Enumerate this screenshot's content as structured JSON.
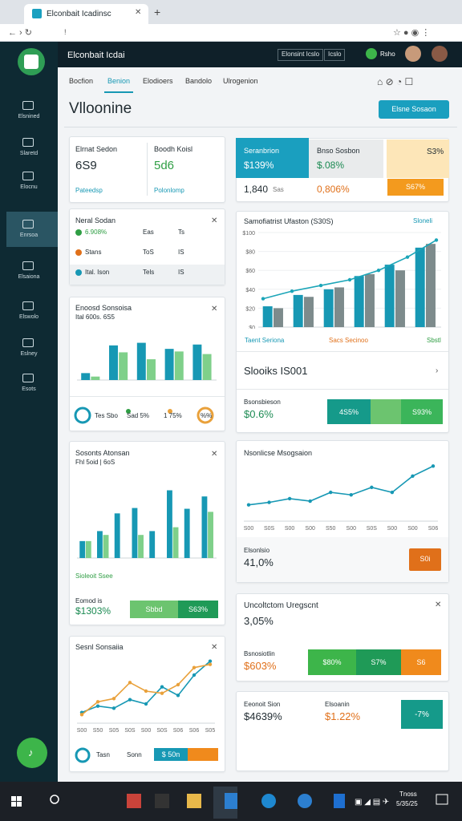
{
  "browser": {
    "tab_title": "Elconbait Icadinsc",
    "url": "!"
  },
  "header": {
    "brand": "Elconbait Icdai",
    "search": "Elonsint Icslo",
    "button": "Icslo",
    "user": "Rsho"
  },
  "sidebar": [
    "Elsnined",
    "Slaretd",
    "Elocnu",
    "Enrsoa",
    "Elsaiona",
    "Elswolo",
    "Eslney",
    "Esots"
  ],
  "tabs": [
    "Bocfion",
    "Benion",
    "Elodioers",
    "Bandolo",
    "Ulrogenion"
  ],
  "page_title": "Vlloonine",
  "action_button": "Elsne Sosaon",
  "cards": {
    "stats": [
      {
        "label": "Elrnat Sedon",
        "value": "6S9",
        "link": "Pateedsp"
      },
      {
        "label": "Boodh Koisl",
        "value": "5d6",
        "link": "Polonlomp"
      }
    ],
    "neral": {
      "title": "Neral Sodan",
      "rows": [
        [
          "6.908%",
          "Eas",
          "Ts"
        ],
        [
          "Stans",
          "ToS",
          "IS"
        ],
        [
          "Ital. Ison",
          "Tels",
          "IS"
        ]
      ]
    },
    "spend": {
      "title": "Enoosd Sonsoisa",
      "subtitle": "Ital 600s. 6S5",
      "donuts": [
        "Tes Sbo",
        "Sad 5%",
        "1 75%",
        "%%"
      ]
    },
    "activity": {
      "title": "Sosonts Atonsan",
      "subtitle": "Fhl 5oid | 6oS",
      "legend": "Sioleoit Ssee",
      "metric_label": "Eomod is",
      "metric": "$1303%",
      "bar": [
        "Sbbd",
        "S63%"
      ]
    },
    "sessions": {
      "title": "Sesnl Sonsaiia",
      "footer": [
        "Tasn",
        "Sonn",
        "$ 50n"
      ]
    },
    "tiles": [
      {
        "label": "Seranbrion",
        "value": "$139%"
      },
      {
        "label": "Bnso Sosbon",
        "value": "$.08%"
      },
      {
        "label": "",
        "value": "S3%"
      }
    ],
    "tiles_row": [
      "1,840",
      "Sas",
      "0,806%",
      "S67%"
    ],
    "revenue": {
      "title": "Samofiatrist Ufaston (S30S)",
      "link": "Sloneli",
      "legend": [
        "Taent Seriona",
        "Sacs Secinoo",
        "Sbstl"
      ],
      "section": "Slooiks IS001",
      "metric_label": "Bsonsbieson",
      "metric": "$0.6%",
      "bar": [
        "4S5%",
        "S93%"
      ]
    },
    "trend": {
      "title": "Nsonlicse Msogsaion",
      "metric_label": "Elsonlsio",
      "metric": "41,0%",
      "button": "S0i"
    },
    "urgent": {
      "title": "Uncoltctom Uregscnt",
      "value": "3,05%",
      "metric_label": "Bsnosiotlin",
      "metric": "$603%",
      "bar": [
        "$80%",
        "S7%",
        "S6"
      ]
    },
    "bottom": {
      "label1": "Eeonoit Sion",
      "value1": "$4639%",
      "label2": "Elsoanin",
      "value2": "$1.22%",
      "box": "-7%"
    }
  },
  "charts": {
    "spend": {
      "type": "bar",
      "ylim": [
        0,
        50
      ],
      "series": [
        {
          "color": "#1798b4",
          "values": [
            8,
            40,
            43,
            36,
            41
          ]
        },
        {
          "color": "#7fd08a",
          "values": [
            4,
            32,
            24,
            33,
            30
          ]
        }
      ]
    },
    "activity": {
      "type": "bar",
      "ylim": [
        0,
        100
      ],
      "series": [
        {
          "color": "#1798b4",
          "values": [
            22,
            35,
            58,
            65,
            35,
            88,
            64,
            80
          ]
        },
        {
          "color": "#7fd08a",
          "values": [
            22,
            30,
            0,
            30,
            0,
            40,
            0,
            60
          ]
        }
      ]
    },
    "sessions": {
      "type": "line",
      "ylim": [
        0,
        60
      ],
      "categories": [
        "S00",
        "S50",
        "S05",
        "S0S",
        "S00",
        "S0S",
        "S06",
        "S06",
        "S05"
      ],
      "series": [
        {
          "color": "#1798b4",
          "values": [
            10,
            16,
            14,
            22,
            18,
            34,
            26,
            45,
            58
          ]
        },
        {
          "color": "#e9a13b",
          "values": [
            8,
            20,
            23,
            38,
            30,
            28,
            36,
            52,
            55
          ]
        }
      ]
    },
    "revenue": {
      "type": "bar",
      "ylim": [
        0,
        100
      ],
      "yticks": [
        {
          "value": 0,
          "label": "$0"
        },
        {
          "value": 20,
          "label": "$20"
        },
        {
          "value": 40,
          "label": "$40"
        },
        {
          "value": 60,
          "label": "$60"
        },
        {
          "value": 80,
          "label": "$80"
        },
        {
          "value": 100,
          "label": "$100"
        }
      ],
      "series": [
        {
          "color": "#1798b4",
          "values": [
            22,
            34,
            40,
            54,
            66,
            84
          ]
        },
        {
          "color": "#7d8b8c",
          "values": [
            20,
            32,
            42,
            56,
            60,
            88
          ]
        },
        {
          "color": "#1ba5b8",
          "kind": "line",
          "values": [
            30,
            38,
            44,
            50,
            60,
            74,
            92
          ]
        }
      ]
    },
    "trend": {
      "type": "line",
      "ylim": [
        0,
        100
      ],
      "categories": [
        "S00",
        "S0S",
        "S00",
        "S00",
        "S50",
        "S00",
        "S0S",
        "S00",
        "S00",
        "S06"
      ],
      "series": [
        {
          "color": "#1798b4",
          "values": [
            26,
            30,
            36,
            32,
            46,
            42,
            54,
            46,
            72,
            88
          ]
        }
      ]
    }
  }
}
